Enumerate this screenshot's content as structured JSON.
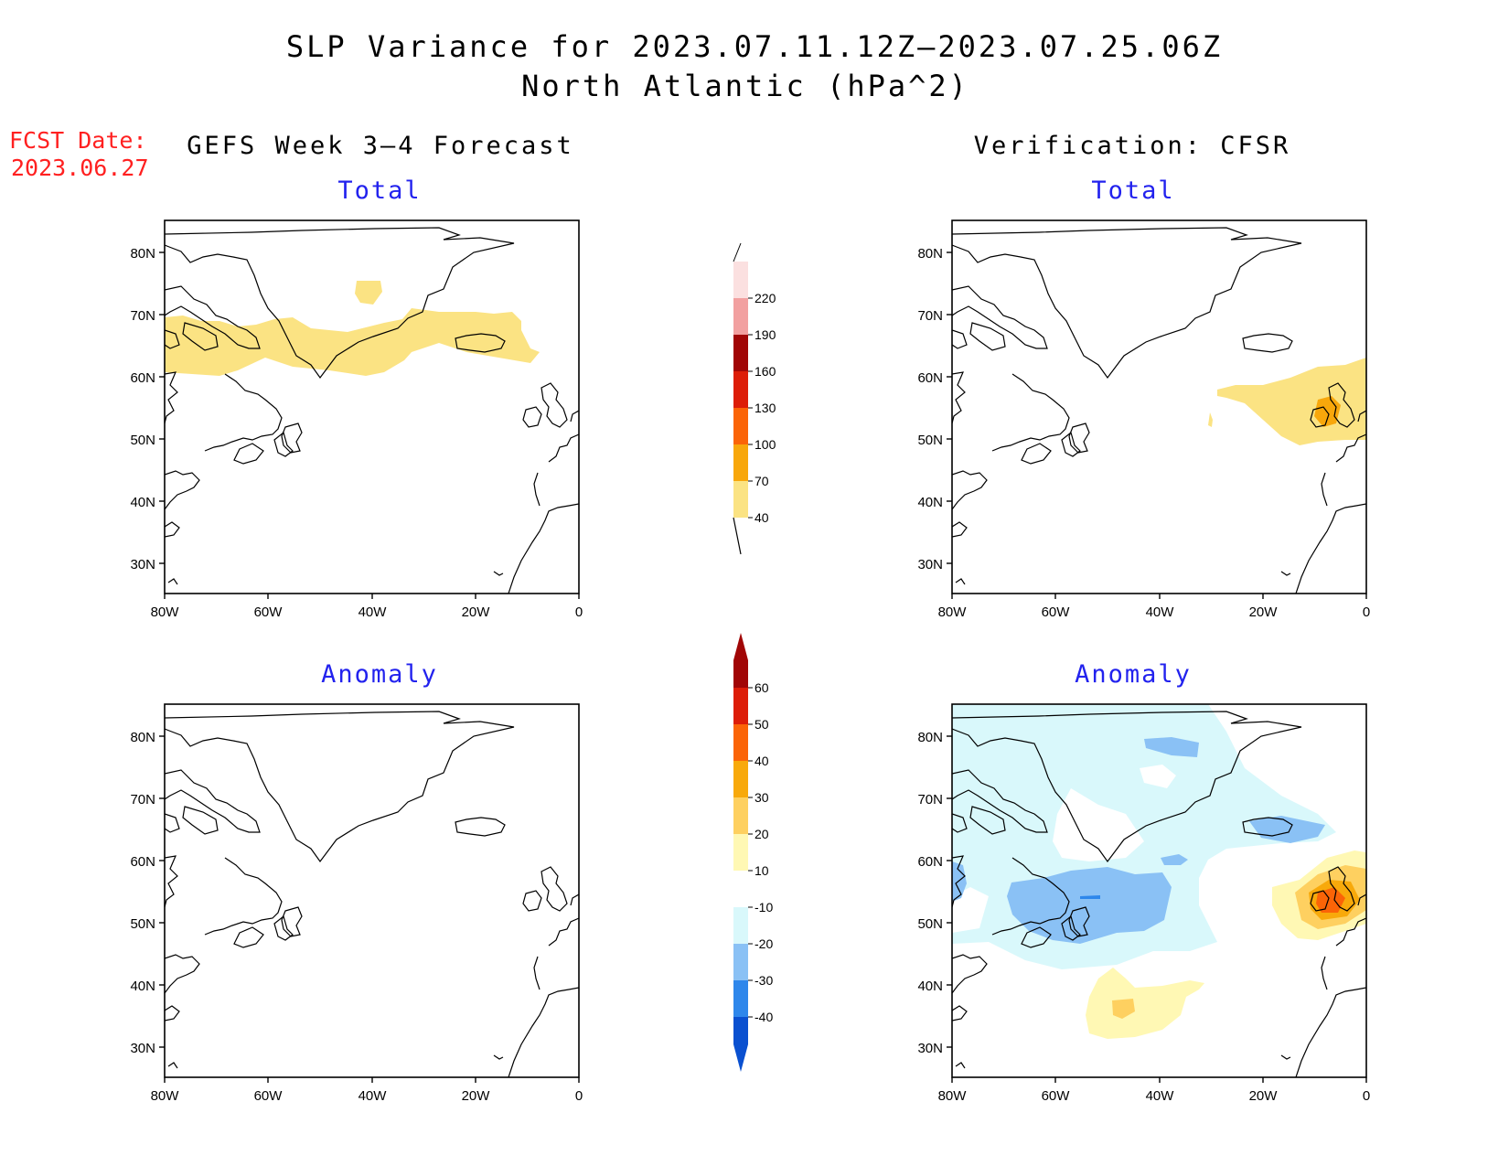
{
  "title": "SLP Variance for 2023.07.11.12Z–2023.07.25.06Z",
  "subtitle": "North Atlantic (hPa^2)",
  "fcst_label": "FCST Date:",
  "fcst_date": "2023.06.27",
  "left_heading": "GEFS Week 3–4 Forecast",
  "right_heading": "Verification: CFSR",
  "panel_total": "Total",
  "panel_anomaly": "Anomaly",
  "lat_ticks": [
    "80N",
    "70N",
    "60N",
    "50N",
    "40N",
    "30N"
  ],
  "lon_ticks": [
    "80W",
    "60W",
    "40W",
    "20W",
    "0"
  ],
  "total_colorbar": {
    "levels": [
      "40",
      "70",
      "100",
      "130",
      "160",
      "190",
      "220"
    ],
    "colors": [
      "#fbe383",
      "#f8a70b",
      "#fb6407",
      "#dd1d08",
      "#a10606",
      "#f2a0a0",
      "#fbe0e0"
    ]
  },
  "anomaly_colorbar": {
    "levels": [
      "-40",
      "-30",
      "-20",
      "-10",
      "10",
      "20",
      "30",
      "40",
      "50",
      "60"
    ],
    "colors": [
      "#0a50d0",
      "#2e87eb",
      "#8ac1f5",
      "#d9f8fb",
      "#ffffff",
      "#fff8b4",
      "#fed060",
      "#f8a90b",
      "#fb6407",
      "#dd1d08",
      "#a10606"
    ]
  },
  "map": {
    "lon_range": [
      -80,
      0
    ],
    "lat_range": [
      25,
      85
    ]
  }
}
